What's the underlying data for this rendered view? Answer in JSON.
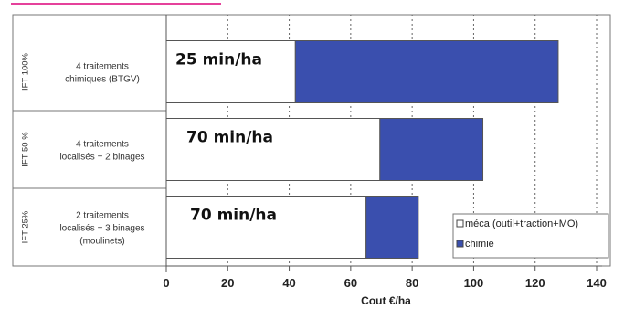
{
  "chart_data": {
    "type": "bar",
    "orientation": "horizontal",
    "stacked": true,
    "xlabel": "Cout €/ha",
    "xlim": [
      0,
      140
    ],
    "xticks": [
      0,
      20,
      40,
      60,
      80,
      100,
      120,
      140
    ],
    "grid": "vertical dotted",
    "legend_position": "bottom-right",
    "categories": [
      {
        "group": "IFT 100%",
        "label_lines": [
          "4 traitements",
          "chimiques (BTGV)"
        ]
      },
      {
        "group": "IFT 50 %",
        "label_lines": [
          "4 traitements",
          "localisés + 2 binages"
        ]
      },
      {
        "group": "IFT 25%",
        "label_lines": [
          "2 traitements",
          "localisés + 3 binages",
          "(moulinets)"
        ]
      }
    ],
    "series": [
      {
        "name": "méca (outil+traction+MO)",
        "color": "#ffffff",
        "values": [
          42,
          69.5,
          65
        ]
      },
      {
        "name": "chimie",
        "color": "#3a4fae",
        "values": [
          85.5,
          33.5,
          17
        ]
      }
    ],
    "data_labels": [
      "25 min/ha",
      "70 min/ha",
      "70 min/ha"
    ]
  },
  "colors": {
    "header_accent": "#e0208a",
    "bar_outline": "#555555",
    "axis": "#555555"
  }
}
